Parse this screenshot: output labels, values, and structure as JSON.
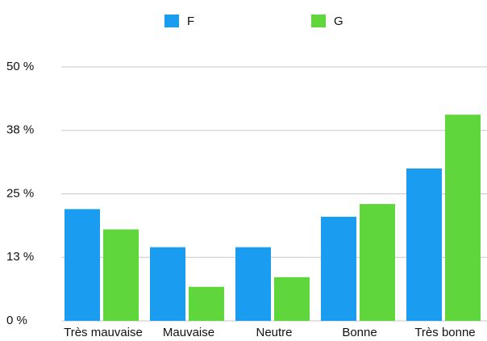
{
  "chart_data": {
    "type": "bar",
    "categories": [
      "Très mauvaise",
      "Mauvaise",
      "Neutre",
      "Bonne",
      "Très bonne"
    ],
    "series": [
      {
        "name": "F",
        "color": "#1a9cf0",
        "values": [
          22,
          14.5,
          14.5,
          20.5,
          30
        ]
      },
      {
        "name": "G",
        "color": "#5fd63b",
        "values": [
          18,
          6.7,
          8.6,
          23,
          40.6
        ]
      }
    ],
    "ylim": [
      0,
      50
    ],
    "yticks": [
      {
        "value": 0,
        "label": "0 %"
      },
      {
        "value": 12.5,
        "label": "13 %"
      },
      {
        "value": 25,
        "label": "25 %"
      },
      {
        "value": 37.5,
        "label": "38 %"
      },
      {
        "value": 50,
        "label": "50 %"
      }
    ],
    "grid": true,
    "legend": "top"
  }
}
